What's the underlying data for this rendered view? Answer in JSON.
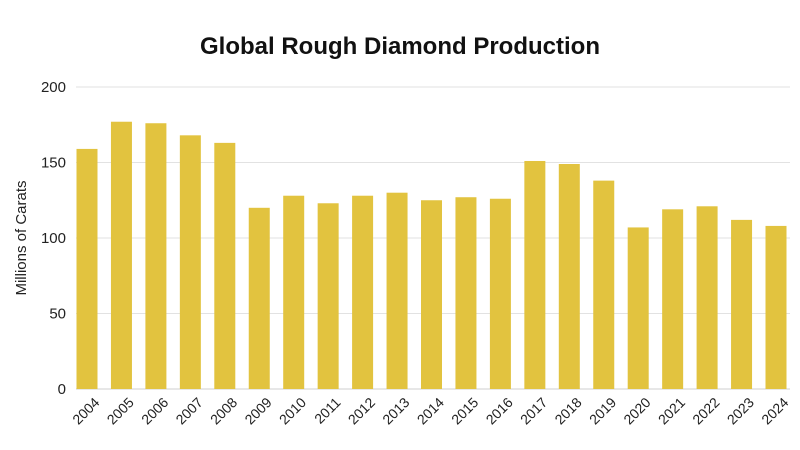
{
  "chart_data": {
    "type": "bar",
    "title": "Global Rough Diamond Production",
    "xlabel": "",
    "ylabel": "Millions of Carats",
    "ylim": [
      0,
      200
    ],
    "yticks": [
      0,
      50,
      100,
      150,
      200
    ],
    "grid": true,
    "legend": "none",
    "bar_color": "#e2c33f",
    "categories": [
      "2004",
      "2005",
      "2006",
      "2007",
      "2008",
      "2009",
      "2010",
      "2011",
      "2012",
      "2013",
      "2014",
      "2015",
      "2016",
      "2017",
      "2018",
      "2019",
      "2020",
      "2021",
      "2022",
      "2023",
      "2024"
    ],
    "values": [
      159,
      177,
      176,
      168,
      163,
      120,
      128,
      123,
      128,
      130,
      125,
      127,
      126,
      151,
      149,
      138,
      107,
      119,
      121,
      112,
      108
    ]
  }
}
